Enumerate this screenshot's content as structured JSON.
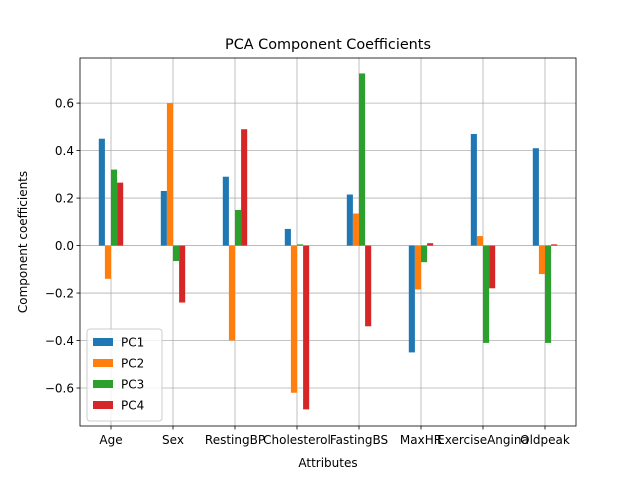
{
  "chart_data": {
    "type": "bar",
    "title": "PCA Component Coefficients",
    "xlabel": "Attributes",
    "ylabel": "Component coefficients",
    "categories": [
      "Age",
      "Sex",
      "RestingBP",
      "Cholesterol",
      "FastingBS",
      "MaxHR",
      "ExerciseAngina",
      "Oldpeak"
    ],
    "series": [
      {
        "name": "PC1",
        "color": "#1f77b4",
        "values": [
          0.45,
          0.23,
          0.29,
          0.07,
          0.215,
          -0.45,
          0.47,
          0.41
        ]
      },
      {
        "name": "PC2",
        "color": "#ff7f0e",
        "values": [
          -0.14,
          0.6,
          -0.4,
          -0.62,
          0.135,
          -0.185,
          0.04,
          -0.12
        ]
      },
      {
        "name": "PC3",
        "color": "#2ca02c",
        "values": [
          0.32,
          -0.065,
          0.15,
          0.005,
          0.725,
          -0.07,
          -0.41,
          -0.41
        ]
      },
      {
        "name": "PC4",
        "color": "#d62728",
        "values": [
          0.265,
          -0.24,
          0.49,
          -0.69,
          -0.34,
          0.01,
          -0.18,
          0.005
        ]
      }
    ],
    "ylim": [
      -0.76,
      0.79
    ],
    "yticks": [
      -0.6,
      -0.4,
      -0.2,
      0.0,
      0.2,
      0.4,
      0.6
    ],
    "ytick_labels": [
      "−0.6",
      "−0.4",
      "−0.2",
      "0.0",
      "0.2",
      "0.4",
      "0.6"
    ],
    "grid": true,
    "legend_position": "lower-left"
  }
}
